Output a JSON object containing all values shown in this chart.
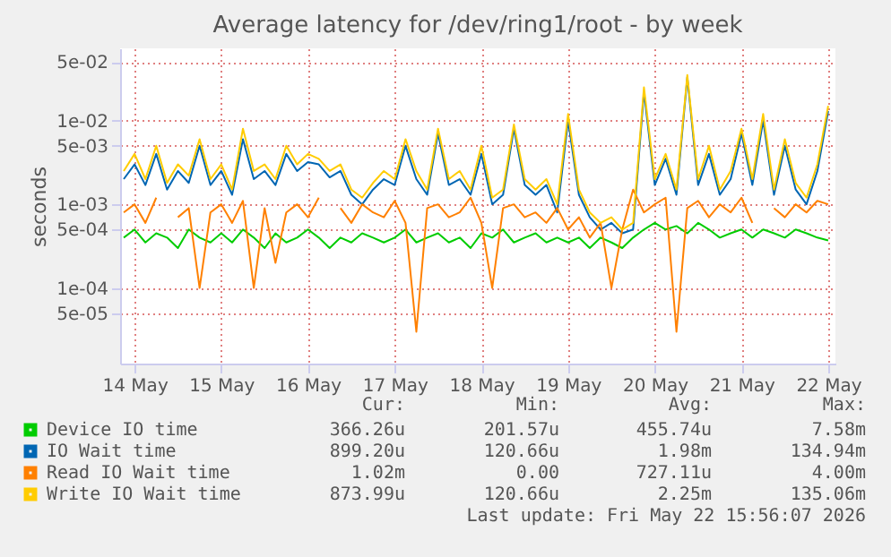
{
  "chart_data": {
    "type": "line",
    "title": "Average latency for /dev/ring1/root - by week",
    "ylabel": "seconds",
    "x": [
      "2026-05-13T21:00",
      "2026-05-14T00:00",
      "2026-05-14T03:00",
      "2026-05-14T06:00",
      "2026-05-14T09:00",
      "2026-05-14T12:00",
      "2026-05-14T15:00",
      "2026-05-14T18:00",
      "2026-05-14T21:00",
      "2026-05-15T00:00",
      "2026-05-15T03:00",
      "2026-05-15T06:00",
      "2026-05-15T09:00",
      "2026-05-15T12:00",
      "2026-05-15T15:00",
      "2026-05-15T18:00",
      "2026-05-15T21:00",
      "2026-05-16T00:00",
      "2026-05-16T03:00",
      "2026-05-16T06:00",
      "2026-05-16T09:00",
      "2026-05-16T12:00",
      "2026-05-16T15:00",
      "2026-05-16T18:00",
      "2026-05-16T21:00",
      "2026-05-17T00:00",
      "2026-05-17T03:00",
      "2026-05-17T06:00",
      "2026-05-17T09:00",
      "2026-05-17T12:00",
      "2026-05-17T15:00",
      "2026-05-17T18:00",
      "2026-05-17T21:00",
      "2026-05-18T00:00",
      "2026-05-18T03:00",
      "2026-05-18T06:00",
      "2026-05-18T09:00",
      "2026-05-18T12:00",
      "2026-05-18T15:00",
      "2026-05-18T18:00",
      "2026-05-18T21:00",
      "2026-05-19T00:00",
      "2026-05-19T03:00",
      "2026-05-19T06:00",
      "2026-05-19T09:00",
      "2026-05-19T12:00",
      "2026-05-19T15:00",
      "2026-05-19T18:00",
      "2026-05-19T21:00",
      "2026-05-20T00:00",
      "2026-05-20T03:00",
      "2026-05-20T06:00",
      "2026-05-20T09:00",
      "2026-05-20T12:00",
      "2026-05-20T15:00",
      "2026-05-20T18:00",
      "2026-05-20T21:00",
      "2026-05-21T00:00",
      "2026-05-21T03:00",
      "2026-05-21T06:00",
      "2026-05-21T09:00",
      "2026-05-21T12:00",
      "2026-05-21T15:00",
      "2026-05-21T18:00",
      "2026-05-21T21:00",
      "2026-05-22T00:00"
    ],
    "series": [
      {
        "name": "Device IO time",
        "color": "#00cc00",
        "values": [
          0.0004,
          0.0005,
          0.00035,
          0.00045,
          0.0004,
          0.0003,
          0.0005,
          0.0004,
          0.00035,
          0.00045,
          0.00035,
          0.0005,
          0.0004,
          0.0003,
          0.00045,
          0.00035,
          0.0004,
          0.0005,
          0.0004,
          0.0003,
          0.0004,
          0.00035,
          0.00045,
          0.0004,
          0.00035,
          0.0004,
          0.0005,
          0.00035,
          0.0004,
          0.00045,
          0.00035,
          0.0004,
          0.0003,
          0.00045,
          0.0004,
          0.0005,
          0.00035,
          0.0004,
          0.00045,
          0.00035,
          0.0004,
          0.00035,
          0.0004,
          0.0003,
          0.0004,
          0.00035,
          0.0003,
          0.0004,
          0.0005,
          0.0006,
          0.0005,
          0.00055,
          0.00045,
          0.0006,
          0.0005,
          0.0004,
          0.00045,
          0.0005,
          0.0004,
          0.0005,
          0.00045,
          0.0004,
          0.0005,
          0.00045,
          0.0004,
          0.00037
        ]
      },
      {
        "name": "IO Wait time",
        "color": "#0066b3",
        "values": [
          0.002,
          0.003,
          0.0017,
          0.004,
          0.0015,
          0.0025,
          0.0018,
          0.005,
          0.0017,
          0.0025,
          0.0013,
          0.006,
          0.002,
          0.0025,
          0.0017,
          0.004,
          0.0025,
          0.0032,
          0.003,
          0.0021,
          0.0025,
          0.0013,
          0.001,
          0.0015,
          0.002,
          0.0017,
          0.005,
          0.002,
          0.0013,
          0.007,
          0.0017,
          0.002,
          0.0013,
          0.004,
          0.001,
          0.0013,
          0.008,
          0.0017,
          0.0013,
          0.0017,
          0.0008,
          0.01,
          0.0013,
          0.0007,
          0.0005,
          0.0006,
          0.00045,
          0.0005,
          0.022,
          0.0017,
          0.0035,
          0.0013,
          0.033,
          0.0017,
          0.004,
          0.0013,
          0.002,
          0.007,
          0.0017,
          0.01,
          0.0013,
          0.005,
          0.0015,
          0.001,
          0.0025,
          0.013
        ]
      },
      {
        "name": "Read IO Wait time",
        "color": "#ff8000",
        "values": [
          0.0008,
          0.001,
          0.0006,
          0.0012,
          null,
          0.0007,
          0.0009,
          0.0001,
          0.0008,
          0.001,
          0.0006,
          0.0011,
          0.0001,
          0.0009,
          0.0002,
          0.0008,
          0.001,
          0.0007,
          0.0012,
          null,
          0.0009,
          0.0006,
          0.001,
          0.0008,
          0.0007,
          0.0011,
          0.0006,
          3e-05,
          0.0009,
          0.001,
          0.0007,
          0.0008,
          0.0012,
          0.0006,
          0.0001,
          0.0009,
          0.001,
          0.0007,
          0.0008,
          0.0006,
          0.0009,
          0.0005,
          0.0007,
          0.0004,
          0.0006,
          0.0001,
          0.0005,
          0.0015,
          0.0008,
          0.001,
          0.0012,
          3e-05,
          0.0009,
          0.0011,
          0.0007,
          0.001,
          0.0008,
          0.0012,
          0.0006,
          null,
          0.0009,
          0.0007,
          0.001,
          0.0008,
          0.0011,
          0.001
        ]
      },
      {
        "name": "Write IO Wait time",
        "color": "#ffcc00",
        "values": [
          0.0025,
          0.004,
          0.002,
          0.005,
          0.0018,
          0.003,
          0.0022,
          0.006,
          0.002,
          0.003,
          0.0015,
          0.008,
          0.0025,
          0.003,
          0.002,
          0.005,
          0.003,
          0.004,
          0.0035,
          0.0025,
          0.003,
          0.0015,
          0.0012,
          0.0018,
          0.0025,
          0.002,
          0.006,
          0.0025,
          0.0015,
          0.008,
          0.002,
          0.0025,
          0.0015,
          0.005,
          0.0012,
          0.0015,
          0.009,
          0.002,
          0.0015,
          0.002,
          0.001,
          0.012,
          0.0015,
          0.0008,
          0.0006,
          0.0007,
          0.0005,
          0.0006,
          0.025,
          0.002,
          0.004,
          0.0015,
          0.035,
          0.002,
          0.005,
          0.0015,
          0.0025,
          0.008,
          0.002,
          0.012,
          0.0015,
          0.006,
          0.0018,
          0.0012,
          0.003,
          0.015
        ]
      }
    ],
    "log": true,
    "ylim": [
      1.25e-05,
      0.073
    ],
    "yticks": [
      {
        "value": 5e-05,
        "label": "5e-05"
      },
      {
        "value": 0.0001,
        "label": "1e-04"
      },
      {
        "value": 0.0005,
        "label": "5e-04"
      },
      {
        "value": 0.001,
        "label": "1e-03"
      },
      {
        "value": 0.005,
        "label": "5e-03"
      },
      {
        "value": 0.01,
        "label": "1e-02"
      },
      {
        "value": 0.05,
        "label": "5e-02"
      }
    ],
    "xlim": [
      "2026-05-13T20:00",
      "2026-05-22T02:00"
    ],
    "xticks": [
      {
        "value": "2026-05-14",
        "label": "14 May"
      },
      {
        "value": "2026-05-15",
        "label": "15 May"
      },
      {
        "value": "2026-05-16",
        "label": "16 May"
      },
      {
        "value": "2026-05-17",
        "label": "17 May"
      },
      {
        "value": "2026-05-18",
        "label": "18 May"
      },
      {
        "value": "2026-05-19",
        "label": "19 May"
      },
      {
        "value": "2026-05-20",
        "label": "20 May"
      },
      {
        "value": "2026-05-21",
        "label": "21 May"
      },
      {
        "value": "2026-05-22",
        "label": "22 May"
      }
    ],
    "grid": true,
    "legend": "bottom left",
    "line_style": "solid",
    "marker": "none",
    "annotations": [
      "Cur:",
      "Min:",
      "Avg:",
      "Max:",
      "366.26u",
      "201.57u",
      "455.74u",
      "7.58m",
      "899.20u",
      "120.66u",
      "1.98m",
      "134.94m",
      "1.02m",
      "0.00",
      "727.11u",
      "4.00m",
      "873.99u",
      "120.66u",
      "2.25m",
      "135.06m",
      "Last update: Fri May 22 15:56:07 2026"
    ]
  }
}
